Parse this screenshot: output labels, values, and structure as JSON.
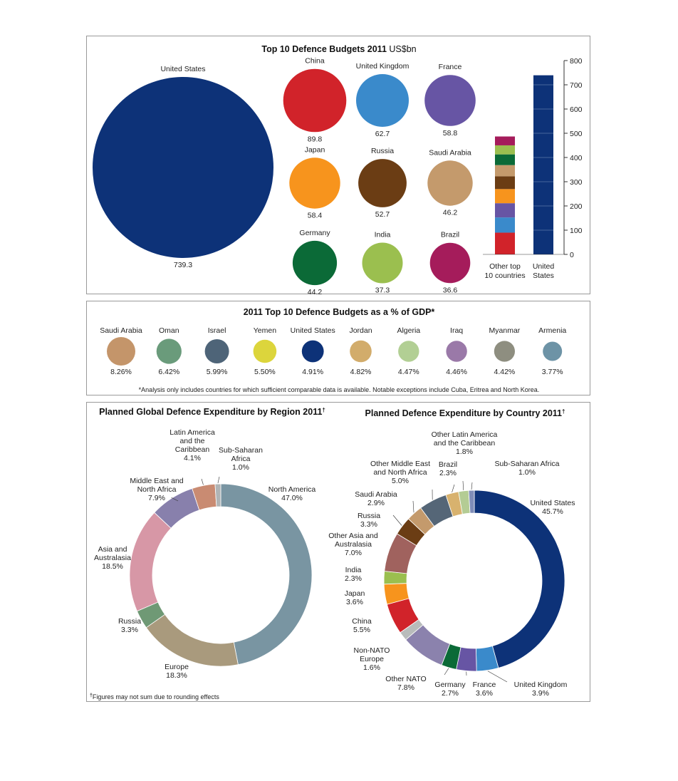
{
  "chart_data": [
    {
      "type": "bubble",
      "title": "Top 10 Defence Budgets 2011",
      "title_unit": "US$bn",
      "categories": [
        "United States",
        "China",
        "United Kingdom",
        "France",
        "Japan",
        "Russia",
        "Saudi Arabia",
        "Germany",
        "India",
        "Brazil"
      ],
      "values": [
        739.3,
        89.8,
        62.7,
        58.8,
        58.4,
        52.7,
        46.2,
        44.2,
        37.3,
        36.6
      ],
      "value_labels": [
        "739.3",
        "89.8",
        "62.7",
        "58.8",
        "58.4",
        "52.7",
        "46.2",
        "44.2",
        "37.3",
        "36.6"
      ],
      "colors": [
        "#0d3278",
        "#d1232a",
        "#3a8acb",
        "#6755a4",
        "#f7941d",
        "#6b3d14",
        "#c49a6c",
        "#0b6a37",
        "#9bbf4f",
        "#a51c5b"
      ]
    },
    {
      "type": "bar",
      "stacked": true,
      "categories": [
        "Other top 10 countries",
        "United States"
      ],
      "category_labels": [
        [
          "Other top",
          "10 countries"
        ],
        [
          "United",
          "States"
        ]
      ],
      "ylim": [
        0,
        800
      ],
      "yticks": [
        "0",
        "100",
        "200",
        "300",
        "400",
        "500",
        "600",
        "700",
        "800"
      ],
      "series": [
        {
          "name": "China",
          "values": [
            89.8,
            0
          ],
          "color": "#d1232a"
        },
        {
          "name": "United Kingdom",
          "values": [
            62.7,
            0
          ],
          "color": "#3a8acb"
        },
        {
          "name": "France",
          "values": [
            58.8,
            0
          ],
          "color": "#6755a4"
        },
        {
          "name": "Japan",
          "values": [
            58.4,
            0
          ],
          "color": "#f7941d"
        },
        {
          "name": "Russia",
          "values": [
            52.7,
            0
          ],
          "color": "#6b3d14"
        },
        {
          "name": "Saudi Arabia",
          "values": [
            46.2,
            0
          ],
          "color": "#c49a6c"
        },
        {
          "name": "Germany",
          "values": [
            44.2,
            0
          ],
          "color": "#0b6a37"
        },
        {
          "name": "India",
          "values": [
            37.3,
            0
          ],
          "color": "#9bbf4f"
        },
        {
          "name": "Brazil",
          "values": [
            36.6,
            0
          ],
          "color": "#a51c5b"
        },
        {
          "name": "United States",
          "values": [
            0,
            739.3
          ],
          "color": "#0d3278"
        }
      ]
    },
    {
      "type": "bubble",
      "title": "2011 Top 10 Defence Budgets as a % of GDP*",
      "categories": [
        "Saudi Arabia",
        "Oman",
        "Israel",
        "Yemen",
        "United States",
        "Jordan",
        "Algeria",
        "Iraq",
        "Myanmar",
        "Armenia"
      ],
      "values": [
        8.26,
        6.42,
        5.99,
        5.5,
        4.91,
        4.82,
        4.47,
        4.46,
        4.42,
        3.77
      ],
      "value_labels": [
        "8.26%",
        "6.42%",
        "5.99%",
        "5.50%",
        "4.91%",
        "4.82%",
        "4.47%",
        "4.46%",
        "4.42%",
        "3.77%"
      ],
      "colors": [
        "#c4956a",
        "#6a9b7b",
        "#4e6478",
        "#dcd53c",
        "#0d3278",
        "#d2ac6b",
        "#b2cf94",
        "#9a79a8",
        "#8e8e80",
        "#6d93a6"
      ],
      "note": "*Analysis only includes countries for which sufficient comparable data is available. Notable exceptions include Cuba, Eritrea and North Korea."
    },
    {
      "type": "pie",
      "donut": true,
      "title": "Planned Global Defence Expenditure by Region 2011",
      "title_mark": "†",
      "categories": [
        "North America",
        "Europe",
        "Russia",
        "Asia and Australasia",
        "Middle East and North Africa",
        "Latin America and the Caribbean",
        "Sub-Saharan Africa"
      ],
      "values": [
        47.0,
        18.3,
        3.3,
        18.5,
        7.9,
        4.1,
        1.0
      ],
      "colors": [
        "#7995a2",
        "#a99a7d",
        "#6f9975",
        "#d797a6",
        "#8880ac",
        "#c98b72",
        "#b0b4b5"
      ],
      "labels": [
        [
          "North America",
          "47.0%"
        ],
        [
          "Europe",
          "18.3%"
        ],
        [
          "Russia",
          "3.3%"
        ],
        [
          "Asia and",
          "Australasia",
          "18.5%"
        ],
        [
          "Middle East and",
          "North Africa",
          "7.9%"
        ],
        [
          "Latin America",
          "and the",
          "Caribbean",
          "4.1%"
        ],
        [
          "Sub-Saharan",
          "Africa",
          "1.0%"
        ]
      ],
      "footnote_mark": "†",
      "footnote": "Figures may not sum due to rounding effects"
    },
    {
      "type": "pie",
      "donut": true,
      "title": "Planned Defence Expenditure by Country 2011",
      "title_mark": "†",
      "categories": [
        "United States",
        "United Kingdom",
        "France",
        "Germany",
        "Other NATO",
        "Non-NATO Europe",
        "China",
        "Japan",
        "India",
        "Other Asia and Australasia",
        "Russia",
        "Saudi Arabia",
        "Other Middle East and North Africa",
        "Brazil",
        "Other Latin America and the Caribbean",
        "Sub-Saharan Africa"
      ],
      "values": [
        45.7,
        3.9,
        3.6,
        2.7,
        7.8,
        1.6,
        5.5,
        3.6,
        2.3,
        7.0,
        3.3,
        2.9,
        5.0,
        2.3,
        1.8,
        1.0
      ],
      "colors": [
        "#0d3278",
        "#3a8acb",
        "#6755a4",
        "#0b6a37",
        "#8b82ad",
        "#b8bcbb",
        "#d1232a",
        "#f7941d",
        "#9bbf4f",
        "#a0625e",
        "#6b3d14",
        "#c49a6c",
        "#556677",
        "#d8b26e",
        "#b4cc94",
        "#7f8db8"
      ],
      "labels": [
        [
          "United States",
          "45.7%"
        ],
        [
          "United Kingdom",
          "3.9%"
        ],
        [
          "France",
          "3.6%"
        ],
        [
          "Germany",
          "2.7%"
        ],
        [
          "Other NATO",
          "7.8%"
        ],
        [
          "Non-NATO",
          "Europe",
          "1.6%"
        ],
        [
          "China",
          "5.5%"
        ],
        [
          "Japan",
          "3.6%"
        ],
        [
          "India",
          "2.3%"
        ],
        [
          "Other Asia and",
          "Australasia",
          "7.0%"
        ],
        [
          "Russia",
          "3.3%"
        ],
        [
          "Saudi Arabia",
          "2.9%"
        ],
        [
          "Other Middle East",
          "and North Africa",
          "5.0%"
        ],
        [
          "Brazil",
          "2.3%"
        ],
        [
          "Other Latin America",
          "and the Caribbean",
          "1.8%"
        ],
        [
          "Sub-Saharan Africa",
          "1.0%"
        ]
      ]
    }
  ]
}
